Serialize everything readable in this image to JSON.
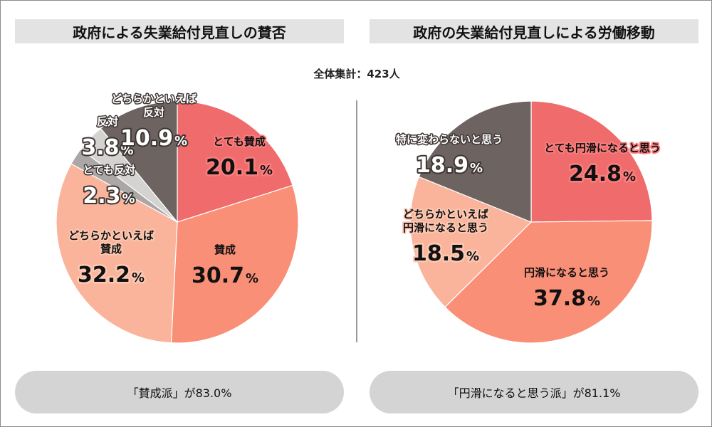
{
  "chart_data": [
    {
      "type": "pie",
      "title": "政府による失業給付見直しの賛否",
      "categories": [
        "とても賛成",
        "賛成",
        "どちらかといえば賛成",
        "とても反対",
        "反対",
        "どちらかといえば反対"
      ],
      "values": [
        20.1,
        30.7,
        32.2,
        2.3,
        3.8,
        10.9
      ],
      "colors": [
        "#f06b6b",
        "#f98f76",
        "#fbb49c",
        "#aca7a7",
        "#d5d2d2",
        "#6d6462"
      ],
      "labels": [
        {
          "lines": [
            "とても賛成"
          ],
          "value": "20.1",
          "unit": "%",
          "style": "halo-red"
        },
        {
          "lines": [
            "賛成"
          ],
          "value": "30.7",
          "unit": "%",
          "style": "plain"
        },
        {
          "lines": [
            "どちらかといえば",
            "賛成"
          ],
          "value": "32.2",
          "unit": "%",
          "style": "halo-pink"
        },
        {
          "lines": [
            "とても反対"
          ],
          "value": "2.3",
          "unit": "%",
          "style": "light"
        },
        {
          "lines": [
            "反対"
          ],
          "value": "3.8",
          "unit": "%",
          "style": "light"
        },
        {
          "lines": [
            "どちらかといえば",
            "反対"
          ],
          "value": "10.9",
          "unit": "%",
          "style": "light"
        }
      ],
      "summary": "「賛成派」が83.0%"
    },
    {
      "type": "pie",
      "title": "政府の失業給付見直しによる労働移動",
      "categories": [
        "とても円滑になると思う",
        "円滑になると思う",
        "どちらかといえば円滑になると思う",
        "特に変わらないと思う"
      ],
      "values": [
        24.8,
        37.8,
        18.5,
        18.9
      ],
      "colors": [
        "#f06b6b",
        "#f98f76",
        "#fbb49c",
        "#6d6462"
      ],
      "labels": [
        {
          "lines": [
            "とても円滑になると思う"
          ],
          "value": "24.8",
          "unit": "%",
          "style": "halo-red"
        },
        {
          "lines": [
            "円滑になると思う"
          ],
          "value": "37.8",
          "unit": "%",
          "style": "plain"
        },
        {
          "lines": [
            "どちらかといえば",
            "円滑になると思う"
          ],
          "value": "18.5",
          "unit": "%",
          "style": "halo-pink"
        },
        {
          "lines": [
            "特に変わらないと思う"
          ],
          "value": "18.9",
          "unit": "%",
          "style": "light"
        }
      ],
      "summary": "「円滑になると思う派」が81.1%"
    }
  ],
  "total": "全体集計：423人"
}
